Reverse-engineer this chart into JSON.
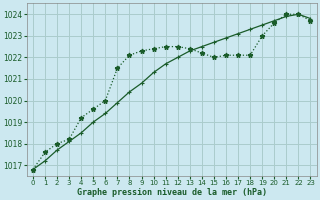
{
  "title": "Graphe pression niveau de la mer (hPa)",
  "background_color": "#cce8f0",
  "grid_color": "#aacccc",
  "line_color": "#1a5c2a",
  "xlim": [
    -0.5,
    23.5
  ],
  "ylim": [
    1016.5,
    1024.5
  ],
  "yticks": [
    1017,
    1018,
    1019,
    1020,
    1021,
    1022,
    1023,
    1024
  ],
  "xticks": [
    0,
    1,
    2,
    3,
    4,
    5,
    6,
    7,
    8,
    9,
    10,
    11,
    12,
    13,
    14,
    15,
    16,
    17,
    18,
    19,
    20,
    21,
    22,
    23
  ],
  "line1_x": [
    0,
    1,
    2,
    3,
    4,
    5,
    6,
    7,
    8,
    9,
    10,
    11,
    12,
    13,
    14,
    15,
    16,
    17,
    18,
    19,
    20,
    21,
    22,
    23
  ],
  "line1_y": [
    1016.8,
    1017.6,
    1018.0,
    1018.2,
    1019.2,
    1019.6,
    1020.0,
    1021.5,
    1022.1,
    1022.3,
    1022.4,
    1022.5,
    1022.5,
    1022.4,
    1022.2,
    1022.0,
    1022.1,
    1022.1,
    1022.1,
    1023.0,
    1023.6,
    1024.0,
    1024.0,
    1023.7
  ],
  "line2_x": [
    0,
    1,
    2,
    3,
    4,
    5,
    6,
    7,
    8,
    9,
    10,
    11,
    12,
    13,
    14,
    15,
    16,
    17,
    18,
    19,
    20,
    21,
    22,
    23
  ],
  "line2_y": [
    1016.8,
    1017.2,
    1017.7,
    1018.1,
    1018.5,
    1019.0,
    1019.4,
    1019.9,
    1020.4,
    1020.8,
    1021.3,
    1021.7,
    1022.0,
    1022.3,
    1022.5,
    1022.7,
    1022.9,
    1023.1,
    1023.3,
    1023.5,
    1023.7,
    1023.9,
    1024.0,
    1023.8
  ]
}
